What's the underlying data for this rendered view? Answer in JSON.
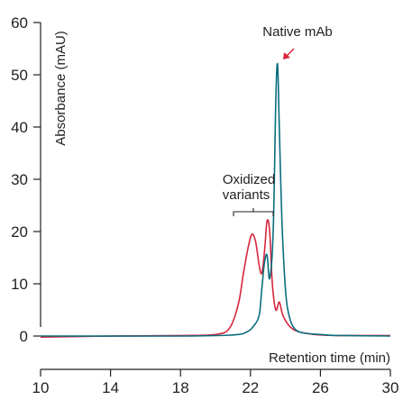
{
  "chart_data": {
    "type": "line",
    "title": "",
    "xlabel": "Retention time (min)",
    "ylabel": "Absorbance (mAU)",
    "xlim": [
      10,
      30
    ],
    "ylim": [
      -5,
      60
    ],
    "x_ticks": [
      "10",
      "14",
      "18",
      "22",
      "26",
      "30"
    ],
    "y_ticks": [
      "0",
      "10",
      "20",
      "30",
      "40",
      "50",
      "60"
    ],
    "grid": false,
    "legend": "none",
    "series": [
      {
        "color": "#d7263d",
        "x": [
          10,
          14,
          18,
          20,
          20.8,
          21.3,
          21.6,
          21.9,
          22.1,
          22.3,
          22.5,
          22.65,
          22.8,
          22.95,
          23.1,
          23.25,
          23.45,
          23.65,
          23.85,
          24.2,
          24.6,
          25.2,
          26,
          27,
          30
        ],
        "y": [
          -0.2,
          0,
          0.1,
          0.3,
          1.5,
          6,
          12,
          17.5,
          19.5,
          18,
          13.5,
          12,
          16,
          22,
          20,
          10,
          5,
          6.5,
          4,
          2,
          1,
          0.5,
          0.2,
          0.1,
          0.1
        ]
      },
      {
        "color": "#0b6e7e",
        "x": [
          10,
          18,
          21,
          21.8,
          22.2,
          22.5,
          22.65,
          22.8,
          22.95,
          23.1,
          23.3,
          23.45,
          23.55,
          23.65,
          23.8,
          24,
          24.2,
          24.5,
          25,
          26,
          27,
          30
        ],
        "y": [
          0,
          0,
          0.2,
          0.8,
          2,
          4,
          9,
          14,
          15.5,
          11,
          20,
          45,
          52,
          40,
          22,
          9,
          4,
          1.5,
          0.6,
          0.3,
          0.1,
          0
        ]
      }
    ],
    "annotations": [
      {
        "text": "Native mAb",
        "x": 23.6,
        "y": 52
      },
      {
        "text_lines": [
          "Oxidized",
          "variants"
        ],
        "x_range": [
          21.1,
          23.2
        ],
        "y": 23
      }
    ]
  }
}
